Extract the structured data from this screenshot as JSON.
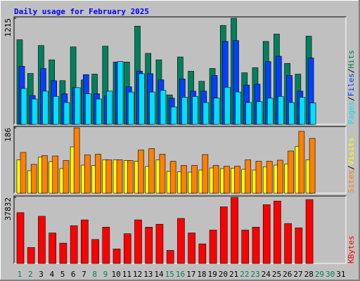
{
  "title": "Daily usage for February 2025",
  "chart_data": [
    {
      "type": "bar",
      "categories": [
        "1",
        "2",
        "3",
        "4",
        "5",
        "6",
        "7",
        "8",
        "9",
        "10",
        "11",
        "12",
        "13",
        "14",
        "15",
        "16",
        "17",
        "18",
        "19",
        "20",
        "21",
        "22",
        "23",
        "24",
        "25",
        "26",
        "27",
        "28",
        "29",
        "30",
        "31"
      ],
      "legend_separator": "/",
      "series": [
        {
          "name": "Hits",
          "color": "#00805c",
          "values": [
            969,
            583,
            903,
            739,
            501,
            887,
            509,
            575,
            895,
            714,
            714,
            1125,
            813,
            739,
            337,
            772,
            608,
            493,
            640,
            1133,
            1215,
            591,
            649,
            950,
            1034,
            698,
            575,
            1010,
            null,
            null,
            null
          ]
        },
        {
          "name": "Files",
          "color": "#0040ff",
          "values": [
            665,
            330,
            640,
            500,
            350,
            420,
            570,
            350,
            330,
            710,
            430,
            610,
            580,
            510,
            300,
            520,
            380,
            380,
            560,
            950,
            960,
            450,
            460,
            720,
            780,
            560,
            380,
            760,
            null,
            null,
            null
          ]
        },
        {
          "name": "Pages",
          "color": "#00e0ff",
          "values": [
            410,
            290,
            380,
            320,
            250,
            420,
            350,
            290,
            380,
            720,
            370,
            580,
            370,
            390,
            200,
            310,
            320,
            250,
            300,
            425,
            370,
            250,
            260,
            300,
            320,
            250,
            310,
            245,
            null,
            null,
            null
          ]
        }
      ],
      "ylim": [
        0,
        1215
      ],
      "yticks": [
        1215
      ]
    },
    {
      "type": "bar",
      "categories": [
        "1",
        "2",
        "3",
        "4",
        "5",
        "6",
        "7",
        "8",
        "9",
        "10",
        "11",
        "12",
        "13",
        "14",
        "15",
        "16",
        "17",
        "18",
        "19",
        "20",
        "21",
        "22",
        "23",
        "24",
        "25",
        "26",
        "27",
        "28",
        "29",
        "30",
        "31"
      ],
      "legend_separator": "/",
      "series": [
        {
          "name": "Visits",
          "color": "#ffff00",
          "values": [
            95,
            64,
            103,
            90,
            70,
            132,
            80,
            79,
            95,
            95,
            93,
            91,
            76,
            95,
            62,
            61,
            60,
            66,
            72,
            70,
            71,
            68,
            66,
            75,
            80,
            83,
            133,
            95,
            null,
            null,
            null
          ]
        },
        {
          "name": "Sites",
          "color": "#ff8000",
          "values": [
            116,
            82,
            107,
            106,
            93,
            186,
            109,
            111,
            95,
            95,
            93,
            123,
            127,
            111,
            91,
            79,
            79,
            110,
            79,
            77,
            77,
            95,
            91,
            91,
            94,
            120,
            176,
            156,
            null,
            null,
            null
          ]
        }
      ],
      "ylim": [
        0,
        186
      ],
      "yticks": [
        186
      ]
    },
    {
      "type": "bar",
      "categories": [
        "1",
        "2",
        "3",
        "4",
        "5",
        "6",
        "7",
        "8",
        "9",
        "10",
        "11",
        "12",
        "13",
        "14",
        "15",
        "16",
        "17",
        "18",
        "19",
        "20",
        "21",
        "22",
        "23",
        "24",
        "25",
        "26",
        "27",
        "28",
        "29",
        "30",
        "31"
      ],
      "category_colors": [
        "#00805c",
        "#00805c",
        "#000000",
        "#000000",
        "#000000",
        "#000000",
        "#000000",
        "#00805c",
        "#00805c",
        "#000000",
        "#000000",
        "#000000",
        "#000000",
        "#000000",
        "#00805c",
        "#00805c",
        "#000000",
        "#000000",
        "#000000",
        "#000000",
        "#000000",
        "#00805c",
        "#00805c",
        "#000000",
        "#000000",
        "#000000",
        "#000000",
        "#000000",
        "#00805c",
        "#00805c",
        "#000000"
      ],
      "series": [
        {
          "name": "KBytes",
          "color": "#ff0000",
          "values": [
            29100,
            9150,
            27000,
            17460,
            11640,
            21620,
            24940,
            13720,
            20790,
            8310,
            17050,
            24940,
            20790,
            22450,
            7480,
            25780,
            17460,
            11220,
            19120,
            32420,
            37832,
            19120,
            20790,
            33670,
            35750,
            22870,
            20370,
            36580,
            null,
            null,
            null
          ]
        }
      ],
      "ylim": [
        0,
        37832
      ],
      "yticks": [
        37832
      ]
    }
  ]
}
